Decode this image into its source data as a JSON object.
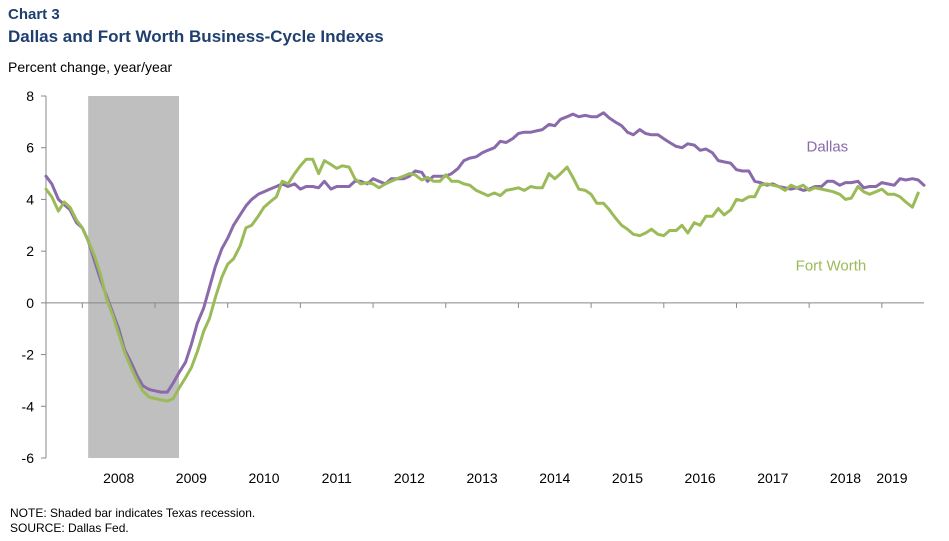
{
  "chart_label": "Chart 3",
  "chart_title": "Dallas and Fort Worth Business-Cycle Indexes",
  "note": "NOTE: Shaded bar indicates Texas recession.",
  "source": "SOURCE: Dallas Fed.",
  "chart_data": {
    "type": "line",
    "title": "Dallas and Fort Worth Business-Cycle Indexes",
    "ylabel": "Percent change, year/year",
    "xlabel": "",
    "ylim": [
      -6,
      8
    ],
    "yticks": [
      8,
      6,
      4,
      2,
      0,
      -2,
      -4,
      -6
    ],
    "xlim": [
      2007.5,
      2019.58
    ],
    "xticks": [
      "2008",
      "2009",
      "2010",
      "2011",
      "2012",
      "2013",
      "2014",
      "2015",
      "2016",
      "2017",
      "2018",
      "2019"
    ],
    "grid": false,
    "legend": "inline labels",
    "shaded_region": {
      "start": 2008.08,
      "end": 2009.33,
      "label": "Texas recession",
      "color": "#bfbfbf"
    },
    "series": [
      {
        "name": "Dallas",
        "color": "#8a6aab",
        "points": [
          [
            2007.5,
            4.9
          ],
          [
            2007.58,
            4.6
          ],
          [
            2007.67,
            4.0
          ],
          [
            2007.75,
            3.8
          ],
          [
            2007.83,
            3.6
          ],
          [
            2007.92,
            3.1
          ],
          [
            2008.0,
            2.9
          ],
          [
            2008.08,
            2.4
          ],
          [
            2008.17,
            1.6
          ],
          [
            2008.25,
            0.9
          ],
          [
            2008.33,
            0.3
          ],
          [
            2008.42,
            -0.4
          ],
          [
            2008.5,
            -1.0
          ],
          [
            2008.58,
            -1.8
          ],
          [
            2008.67,
            -2.3
          ],
          [
            2008.75,
            -2.8
          ],
          [
            2008.83,
            -3.2
          ],
          [
            2008.92,
            -3.35
          ],
          [
            2009.0,
            -3.4
          ],
          [
            2009.08,
            -3.45
          ],
          [
            2009.17,
            -3.45
          ],
          [
            2009.25,
            -3.1
          ],
          [
            2009.33,
            -2.7
          ],
          [
            2009.42,
            -2.3
          ],
          [
            2009.5,
            -1.6
          ],
          [
            2009.58,
            -0.8
          ],
          [
            2009.67,
            -0.2
          ],
          [
            2009.75,
            0.6
          ],
          [
            2009.83,
            1.4
          ],
          [
            2009.92,
            2.1
          ],
          [
            2010.0,
            2.5
          ],
          [
            2010.08,
            3.0
          ],
          [
            2010.17,
            3.4
          ],
          [
            2010.25,
            3.75
          ],
          [
            2010.33,
            4.0
          ],
          [
            2010.42,
            4.2
          ],
          [
            2010.5,
            4.3
          ],
          [
            2010.58,
            4.4
          ],
          [
            2010.67,
            4.5
          ],
          [
            2010.75,
            4.6
          ],
          [
            2010.83,
            4.5
          ],
          [
            2010.92,
            4.6
          ],
          [
            2011.0,
            4.4
          ],
          [
            2011.08,
            4.5
          ],
          [
            2011.17,
            4.5
          ],
          [
            2011.25,
            4.45
          ],
          [
            2011.33,
            4.7
          ],
          [
            2011.42,
            4.4
          ],
          [
            2011.5,
            4.5
          ],
          [
            2011.58,
            4.5
          ],
          [
            2011.67,
            4.5
          ],
          [
            2011.75,
            4.7
          ],
          [
            2011.83,
            4.7
          ],
          [
            2011.92,
            4.6
          ],
          [
            2012.0,
            4.8
          ],
          [
            2012.08,
            4.7
          ],
          [
            2012.17,
            4.6
          ],
          [
            2012.25,
            4.8
          ],
          [
            2012.33,
            4.8
          ],
          [
            2012.42,
            4.8
          ],
          [
            2012.5,
            4.9
          ],
          [
            2012.58,
            5.1
          ],
          [
            2012.67,
            5.05
          ],
          [
            2012.75,
            4.7
          ],
          [
            2012.83,
            4.9
          ],
          [
            2012.92,
            4.9
          ],
          [
            2013.0,
            4.9
          ],
          [
            2013.08,
            5.0
          ],
          [
            2013.17,
            5.2
          ],
          [
            2013.25,
            5.5
          ],
          [
            2013.33,
            5.6
          ],
          [
            2013.42,
            5.65
          ],
          [
            2013.5,
            5.8
          ],
          [
            2013.58,
            5.9
          ],
          [
            2013.67,
            6.0
          ],
          [
            2013.75,
            6.25
          ],
          [
            2013.83,
            6.2
          ],
          [
            2013.92,
            6.35
          ],
          [
            2014.0,
            6.55
          ],
          [
            2014.08,
            6.6
          ],
          [
            2014.17,
            6.6
          ],
          [
            2014.25,
            6.65
          ],
          [
            2014.33,
            6.7
          ],
          [
            2014.42,
            6.9
          ],
          [
            2014.5,
            6.85
          ],
          [
            2014.58,
            7.1
          ],
          [
            2014.67,
            7.2
          ],
          [
            2014.75,
            7.3
          ],
          [
            2014.83,
            7.2
          ],
          [
            2014.92,
            7.25
          ],
          [
            2015.0,
            7.2
          ],
          [
            2015.08,
            7.2
          ],
          [
            2015.17,
            7.35
          ],
          [
            2015.25,
            7.15
          ],
          [
            2015.33,
            7.0
          ],
          [
            2015.42,
            6.85
          ],
          [
            2015.5,
            6.6
          ],
          [
            2015.58,
            6.5
          ],
          [
            2015.67,
            6.7
          ],
          [
            2015.75,
            6.55
          ],
          [
            2015.83,
            6.5
          ],
          [
            2015.92,
            6.5
          ],
          [
            2016.0,
            6.35
          ],
          [
            2016.08,
            6.2
          ],
          [
            2016.17,
            6.05
          ],
          [
            2016.25,
            6.0
          ],
          [
            2016.33,
            6.15
          ],
          [
            2016.42,
            6.1
          ],
          [
            2016.5,
            5.9
          ],
          [
            2016.58,
            5.95
          ],
          [
            2016.67,
            5.8
          ],
          [
            2016.75,
            5.5
          ],
          [
            2016.83,
            5.45
          ],
          [
            2016.92,
            5.4
          ],
          [
            2017.0,
            5.15
          ],
          [
            2017.08,
            5.1
          ],
          [
            2017.17,
            5.1
          ],
          [
            2017.25,
            4.7
          ],
          [
            2017.33,
            4.65
          ],
          [
            2017.42,
            4.55
          ],
          [
            2017.5,
            4.6
          ],
          [
            2017.58,
            4.5
          ],
          [
            2017.67,
            4.45
          ],
          [
            2017.75,
            4.4
          ],
          [
            2017.83,
            4.45
          ],
          [
            2017.92,
            4.35
          ],
          [
            2018.0,
            4.4
          ],
          [
            2018.08,
            4.5
          ],
          [
            2018.17,
            4.5
          ],
          [
            2018.25,
            4.7
          ],
          [
            2018.33,
            4.7
          ],
          [
            2018.42,
            4.55
          ],
          [
            2018.5,
            4.65
          ],
          [
            2018.58,
            4.65
          ],
          [
            2018.67,
            4.7
          ],
          [
            2018.75,
            4.45
          ],
          [
            2018.83,
            4.5
          ],
          [
            2018.92,
            4.5
          ],
          [
            2019.0,
            4.65
          ],
          [
            2019.08,
            4.6
          ],
          [
            2019.17,
            4.55
          ],
          [
            2019.25,
            4.8
          ],
          [
            2019.33,
            4.75
          ],
          [
            2019.42,
            4.8
          ],
          [
            2019.5,
            4.75
          ],
          [
            2019.58,
            4.55
          ]
        ]
      },
      {
        "name": "Fort Worth",
        "color": "#9bbb59",
        "points": [
          [
            2007.5,
            4.4
          ],
          [
            2007.58,
            4.1
          ],
          [
            2007.67,
            3.55
          ],
          [
            2007.75,
            3.9
          ],
          [
            2007.83,
            3.7
          ],
          [
            2007.92,
            3.2
          ],
          [
            2008.0,
            2.9
          ],
          [
            2008.08,
            2.4
          ],
          [
            2008.17,
            1.8
          ],
          [
            2008.25,
            1.1
          ],
          [
            2008.33,
            0.2
          ],
          [
            2008.42,
            -0.5
          ],
          [
            2008.5,
            -1.2
          ],
          [
            2008.58,
            -1.9
          ],
          [
            2008.67,
            -2.5
          ],
          [
            2008.75,
            -3.0
          ],
          [
            2008.83,
            -3.4
          ],
          [
            2008.92,
            -3.65
          ],
          [
            2009.0,
            -3.7
          ],
          [
            2009.08,
            -3.75
          ],
          [
            2009.17,
            -3.8
          ],
          [
            2009.25,
            -3.7
          ],
          [
            2009.33,
            -3.3
          ],
          [
            2009.42,
            -2.9
          ],
          [
            2009.5,
            -2.5
          ],
          [
            2009.58,
            -1.9
          ],
          [
            2009.67,
            -1.1
          ],
          [
            2009.75,
            -0.6
          ],
          [
            2009.83,
            0.2
          ],
          [
            2009.92,
            1.0
          ],
          [
            2010.0,
            1.5
          ],
          [
            2010.08,
            1.7
          ],
          [
            2010.17,
            2.2
          ],
          [
            2010.25,
            2.9
          ],
          [
            2010.33,
            3.0
          ],
          [
            2010.42,
            3.35
          ],
          [
            2010.5,
            3.7
          ],
          [
            2010.58,
            3.9
          ],
          [
            2010.67,
            4.1
          ],
          [
            2010.75,
            4.7
          ],
          [
            2010.83,
            4.6
          ],
          [
            2010.92,
            5.0
          ],
          [
            2011.0,
            5.3
          ],
          [
            2011.08,
            5.55
          ],
          [
            2011.17,
            5.55
          ],
          [
            2011.25,
            5.0
          ],
          [
            2011.33,
            5.5
          ],
          [
            2011.42,
            5.35
          ],
          [
            2011.5,
            5.2
          ],
          [
            2011.58,
            5.3
          ],
          [
            2011.67,
            5.25
          ],
          [
            2011.75,
            4.8
          ],
          [
            2011.83,
            4.6
          ],
          [
            2011.92,
            4.65
          ],
          [
            2012.0,
            4.6
          ],
          [
            2012.08,
            4.45
          ],
          [
            2012.17,
            4.6
          ],
          [
            2012.25,
            4.7
          ],
          [
            2012.33,
            4.8
          ],
          [
            2012.42,
            4.9
          ],
          [
            2012.5,
            5.0
          ],
          [
            2012.58,
            4.95
          ],
          [
            2012.67,
            4.75
          ],
          [
            2012.75,
            4.85
          ],
          [
            2012.83,
            4.7
          ],
          [
            2012.92,
            4.7
          ],
          [
            2013.0,
            4.95
          ],
          [
            2013.08,
            4.7
          ],
          [
            2013.17,
            4.7
          ],
          [
            2013.25,
            4.6
          ],
          [
            2013.33,
            4.55
          ],
          [
            2013.42,
            4.35
          ],
          [
            2013.5,
            4.25
          ],
          [
            2013.58,
            4.15
          ],
          [
            2013.67,
            4.25
          ],
          [
            2013.75,
            4.15
          ],
          [
            2013.83,
            4.35
          ],
          [
            2013.92,
            4.4
          ],
          [
            2014.0,
            4.45
          ],
          [
            2014.08,
            4.35
          ],
          [
            2014.17,
            4.5
          ],
          [
            2014.25,
            4.45
          ],
          [
            2014.33,
            4.45
          ],
          [
            2014.42,
            5.0
          ],
          [
            2014.5,
            4.8
          ],
          [
            2014.58,
            5.0
          ],
          [
            2014.67,
            5.25
          ],
          [
            2014.75,
            4.85
          ],
          [
            2014.83,
            4.4
          ],
          [
            2014.92,
            4.35
          ],
          [
            2015.0,
            4.2
          ],
          [
            2015.08,
            3.85
          ],
          [
            2015.17,
            3.85
          ],
          [
            2015.25,
            3.6
          ],
          [
            2015.33,
            3.3
          ],
          [
            2015.42,
            3.0
          ],
          [
            2015.5,
            2.85
          ],
          [
            2015.58,
            2.65
          ],
          [
            2015.67,
            2.6
          ],
          [
            2015.75,
            2.7
          ],
          [
            2015.83,
            2.85
          ],
          [
            2015.92,
            2.65
          ],
          [
            2016.0,
            2.6
          ],
          [
            2016.08,
            2.8
          ],
          [
            2016.17,
            2.8
          ],
          [
            2016.25,
            3.0
          ],
          [
            2016.33,
            2.7
          ],
          [
            2016.42,
            3.1
          ],
          [
            2016.5,
            3.0
          ],
          [
            2016.58,
            3.35
          ],
          [
            2016.67,
            3.35
          ],
          [
            2016.75,
            3.65
          ],
          [
            2016.83,
            3.4
          ],
          [
            2016.92,
            3.6
          ],
          [
            2017.0,
            4.0
          ],
          [
            2017.08,
            3.95
          ],
          [
            2017.17,
            4.1
          ],
          [
            2017.25,
            4.1
          ],
          [
            2017.33,
            4.55
          ],
          [
            2017.42,
            4.6
          ],
          [
            2017.5,
            4.55
          ],
          [
            2017.58,
            4.5
          ],
          [
            2017.67,
            4.35
          ],
          [
            2017.75,
            4.55
          ],
          [
            2017.83,
            4.45
          ],
          [
            2017.92,
            4.55
          ],
          [
            2018.0,
            4.35
          ],
          [
            2018.08,
            4.45
          ],
          [
            2018.17,
            4.4
          ],
          [
            2018.25,
            4.35
          ],
          [
            2018.33,
            4.3
          ],
          [
            2018.42,
            4.2
          ],
          [
            2018.5,
            4.0
          ],
          [
            2018.58,
            4.05
          ],
          [
            2018.67,
            4.5
          ],
          [
            2018.75,
            4.3
          ],
          [
            2018.83,
            4.2
          ],
          [
            2018.92,
            4.3
          ],
          [
            2019.0,
            4.4
          ],
          [
            2019.08,
            4.2
          ],
          [
            2019.17,
            4.2
          ],
          [
            2019.25,
            4.1
          ],
          [
            2019.33,
            3.9
          ],
          [
            2019.42,
            3.7
          ],
          [
            2019.5,
            4.25
          ]
        ]
      }
    ]
  }
}
